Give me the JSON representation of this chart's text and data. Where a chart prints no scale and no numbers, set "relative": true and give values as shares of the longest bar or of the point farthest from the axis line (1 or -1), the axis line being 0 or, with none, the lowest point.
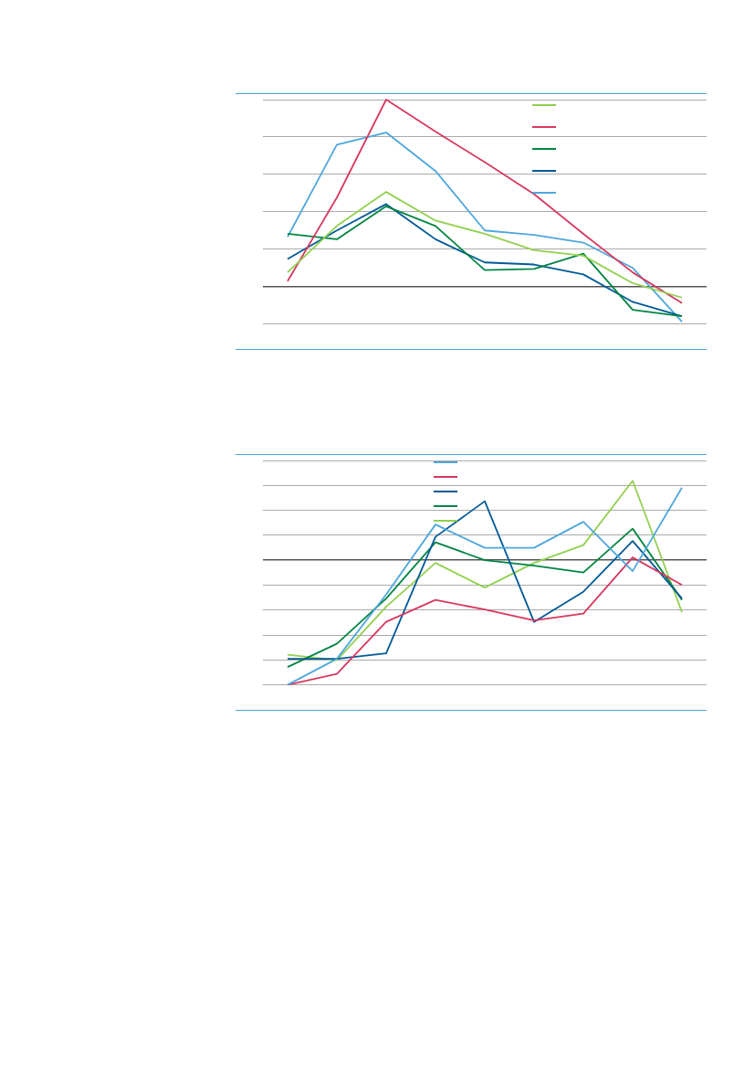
{
  "chart_data": [
    {
      "type": "line",
      "relative": true,
      "grid": "y",
      "marker": "none",
      "categories": [
        null,
        null,
        null,
        null,
        null,
        null,
        null,
        null,
        null
      ],
      "series": [
        {
          "color": "#92d050",
          "values": [
            0.076,
            0.324,
            0.506,
            0.353,
            0.282,
            0.194,
            0.165,
            0.018,
            -0.059
          ]
        },
        {
          "color": "#d7385e",
          "values": [
            0.029,
            0.476,
            1,
            0.829,
            0.665,
            0.494,
            0.282,
            0.076,
            -0.088
          ]
        },
        {
          "color": "#008542",
          "values": [
            0.282,
            0.253,
            0.429,
            0.324,
            0.088,
            0.094,
            0.176,
            -0.124,
            -0.159
          ]
        },
        {
          "color": "#005a96",
          "values": [
            0.147,
            0.3,
            0.441,
            0.253,
            0.129,
            0.118,
            0.065,
            -0.082,
            -0.159
          ]
        },
        {
          "color": "#4ea6dc",
          "values": [
            0.265,
            0.759,
            0.824,
            0.618,
            0.3,
            0.276,
            0.235,
            0.1,
            -0.188
          ]
        }
      ]
    },
    {
      "type": "line",
      "relative": true,
      "grid": "y",
      "marker": "none",
      "categories": [
        null,
        null,
        null,
        null,
        null,
        null,
        null,
        null,
        null
      ],
      "series": [
        {
          "color": "#4ea6dc",
          "values": [
            -1,
            -0.791,
            -0.275,
            0.286,
            0.099,
            0.099,
            0.308,
            -0.088,
            0.582
          ]
        },
        {
          "color": "#d7385e",
          "values": [
            -1,
            -0.912,
            -0.495,
            -0.319,
            -0.396,
            -0.484,
            -0.429,
            0.022,
            -0.198
          ]
        },
        {
          "color": "#005a96",
          "values": [
            -0.791,
            -0.791,
            -0.747,
            0.187,
            0.473,
            -0.495,
            -0.253,
            0.154,
            -0.308
          ]
        },
        {
          "color": "#008542",
          "values": [
            -0.857,
            -0.67,
            -0.308,
            0.143,
            0,
            -0.044,
            -0.099,
            0.253,
            -0.319
          ]
        },
        {
          "color": "#92d050",
          "values": [
            -0.758,
            -0.802,
            -0.374,
            -0.022,
            -0.22,
            -0.022,
            0.121,
            0.637,
            -0.418
          ]
        }
      ]
    }
  ]
}
